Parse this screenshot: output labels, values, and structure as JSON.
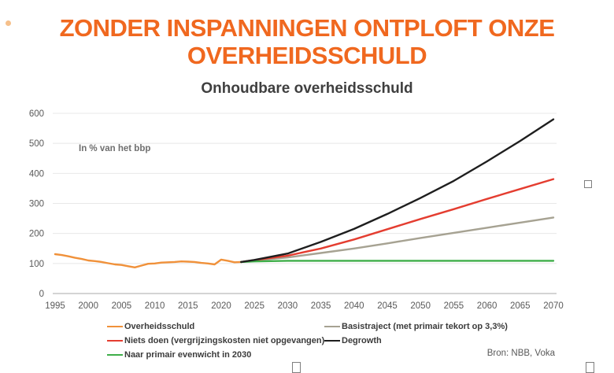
{
  "page": {
    "title": "ZONDER INSPANNINGEN ONTPLOFT ONZE OVERHEIDSSCHULD",
    "source": "Bron: NBB, Voka"
  },
  "chart_data": {
    "type": "line",
    "title": "Onhoudbare overheidsschuld",
    "unit_label": "In % van het bbp",
    "xlabel": "",
    "ylabel": "",
    "xlim": [
      1995,
      2070
    ],
    "ylim": [
      0,
      600
    ],
    "x_ticks": [
      1995,
      2000,
      2005,
      2010,
      2015,
      2020,
      2025,
      2030,
      2035,
      2040,
      2045,
      2050,
      2055,
      2060,
      2065,
      2070
    ],
    "y_ticks": [
      0,
      100,
      200,
      300,
      400,
      500,
      600
    ],
    "grid": "horizontal",
    "legend_position": "bottom",
    "series": [
      {
        "name": "Overheidsschuld",
        "key": "overheidsschuld",
        "color": "#f0913a",
        "x": [
          1995,
          1996,
          1997,
          1998,
          1999,
          2000,
          2001,
          2002,
          2003,
          2004,
          2005,
          2006,
          2007,
          2008,
          2009,
          2010,
          2011,
          2012,
          2013,
          2014,
          2015,
          2016,
          2017,
          2018,
          2019,
          2020,
          2021,
          2022,
          2023
        ],
        "values": [
          131,
          128,
          124,
          119,
          115,
          110,
          108,
          105,
          101,
          97,
          95,
          91,
          87,
          93,
          99,
          100,
          103,
          104,
          105,
          107,
          106,
          105,
          102,
          100,
          97,
          113,
          109,
          104,
          105
        ]
      },
      {
        "name": "Basistraject (met primair tekort op 3,3%)",
        "key": "basistraject",
        "color": "#a6a292",
        "x": [
          2023,
          2025,
          2030,
          2035,
          2040,
          2045,
          2050,
          2055,
          2060,
          2065,
          2070
        ],
        "values": [
          105,
          110,
          120,
          135,
          150,
          167,
          185,
          202,
          219,
          236,
          253
        ]
      },
      {
        "name": "Niets doen (vergrijzingskosten niet opgevangen)",
        "key": "niets-doen",
        "color": "#e43d30",
        "x": [
          2023,
          2025,
          2030,
          2035,
          2040,
          2045,
          2050,
          2055,
          2060,
          2065,
          2070
        ],
        "values": [
          105,
          111,
          126,
          150,
          180,
          214,
          248,
          281,
          315,
          348,
          381
        ]
      },
      {
        "name": "Naar primair evenwicht in 2030",
        "key": "naar-primair-evenwicht",
        "color": "#3fae49",
        "x": [
          2023,
          2025,
          2030,
          2035,
          2040,
          2045,
          2050,
          2055,
          2060,
          2065,
          2070
        ],
        "values": [
          105,
          107,
          109,
          109,
          109,
          109,
          109,
          109,
          109,
          109,
          109
        ]
      },
      {
        "name": "Degrowth",
        "key": "degrowth",
        "color": "#1e1e1e",
        "x": [
          2023,
          2025,
          2030,
          2035,
          2040,
          2045,
          2050,
          2055,
          2060,
          2065,
          2070
        ],
        "values": [
          105,
          112,
          133,
          172,
          215,
          265,
          318,
          375,
          440,
          508,
          580
        ]
      }
    ]
  }
}
